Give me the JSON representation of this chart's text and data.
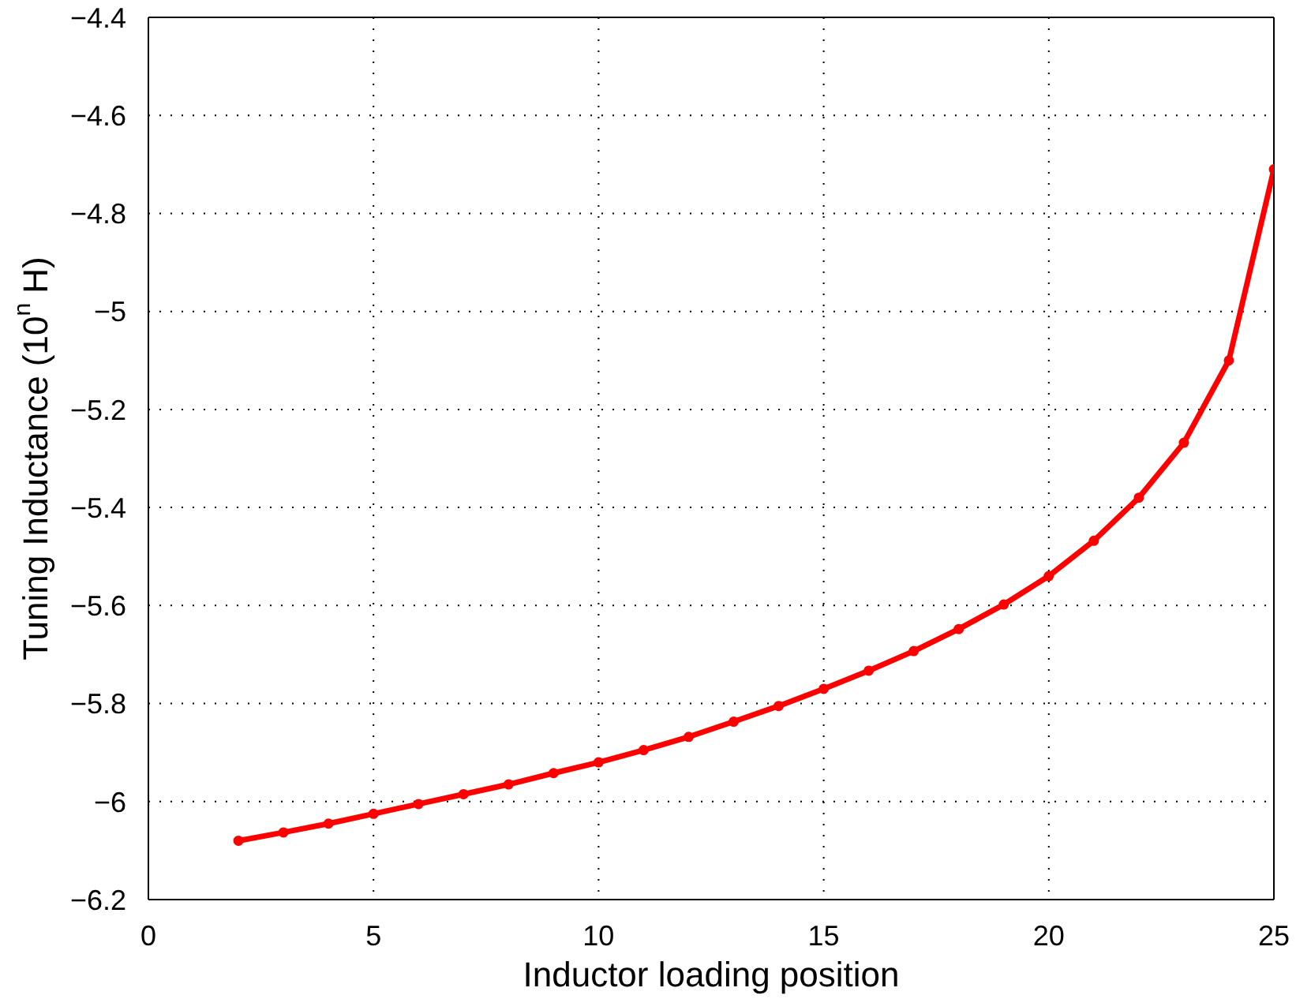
{
  "chart_data": {
    "type": "line",
    "xlabel": "Inductor loading position",
    "ylabel": "Tuning Inductance (10$^{n}$ H)",
    "x": [
      2,
      3,
      4,
      5,
      6,
      7,
      8,
      9,
      10,
      11,
      12,
      13,
      14,
      15,
      16,
      17,
      18,
      19,
      20,
      21,
      22,
      23,
      24,
      25
    ],
    "series": [
      {
        "color": "#ff0000",
        "values": [
          -6.08,
          -6.063,
          -6.045,
          -6.025,
          -6.005,
          -5.985,
          -5.965,
          -5.942,
          -5.92,
          -5.895,
          -5.868,
          -5.837,
          -5.805,
          -5.77,
          -5.733,
          -5.693,
          -5.648,
          -5.598,
          -5.54,
          -5.468,
          -5.38,
          -5.268,
          -5.1,
          -4.71
        ]
      }
    ],
    "xlim": [
      0,
      25
    ],
    "xticks": [
      0,
      5,
      10,
      15,
      20,
      25
    ],
    "ylim": [
      -6.2,
      -4.4
    ],
    "yticks": [
      -6.2,
      -6,
      -5.8,
      -5.6,
      -5.4,
      -5.2,
      -5,
      -4.8,
      -4.6,
      -4.4
    ],
    "grid": true,
    "marker": "circle",
    "line_style": "solid"
  }
}
